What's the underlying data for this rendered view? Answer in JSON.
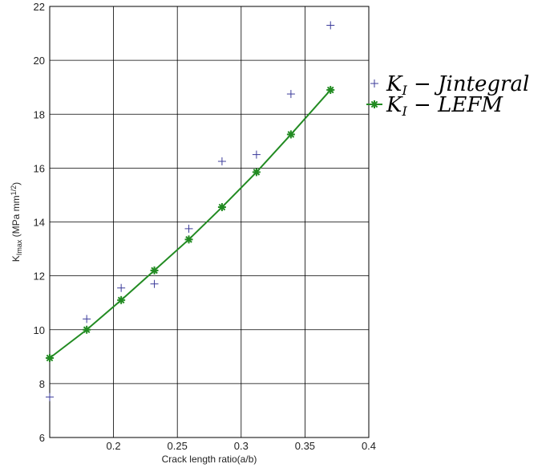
{
  "chart_data": {
    "type": "line",
    "title": "",
    "xlabel": "Crack length ratio(a/b)",
    "ylabel": {
      "main": "K",
      "sub": "Imax",
      "units_pre": " (MPa mm",
      "units_sup": "1/2",
      "units_post": ")"
    },
    "xlim": [
      0.15,
      0.4
    ],
    "ylim": [
      6,
      22
    ],
    "xticks": [
      0.2,
      0.25,
      0.3,
      0.35,
      0.4
    ],
    "xtick_labels": [
      "0.2",
      "0.25",
      "0.3",
      "0.35",
      "0.4"
    ],
    "yticks": [
      6,
      8,
      10,
      12,
      14,
      16,
      18,
      20,
      22
    ],
    "ytick_labels": [
      "6",
      "8",
      "10",
      "12",
      "14",
      "16",
      "18",
      "20",
      "22"
    ],
    "grid": true,
    "legend_position": "outside-right-top",
    "series": [
      {
        "name": "K_I − Jintegral",
        "legend": {
          "main": "K",
          "sub": "I",
          "rest": " − Jintegral"
        },
        "marker": "plus",
        "line": false,
        "color": "#3b3b9a",
        "x": [
          0.15,
          0.179,
          0.206,
          0.232,
          0.259,
          0.285,
          0.312,
          0.339,
          0.37
        ],
        "y": [
          7.5,
          10.4,
          11.55,
          11.7,
          13.75,
          16.25,
          16.5,
          18.75,
          21.3
        ]
      },
      {
        "name": "K_I − LEFM",
        "legend": {
          "main": "K",
          "sub": "I",
          "rest": " − LEFM"
        },
        "marker": "asterisk",
        "line": true,
        "color": "#228b22",
        "x": [
          0.15,
          0.179,
          0.206,
          0.232,
          0.259,
          0.285,
          0.312,
          0.339,
          0.37
        ],
        "y": [
          8.95,
          10.0,
          11.1,
          12.2,
          13.35,
          14.55,
          15.85,
          17.25,
          18.9
        ]
      }
    ]
  }
}
